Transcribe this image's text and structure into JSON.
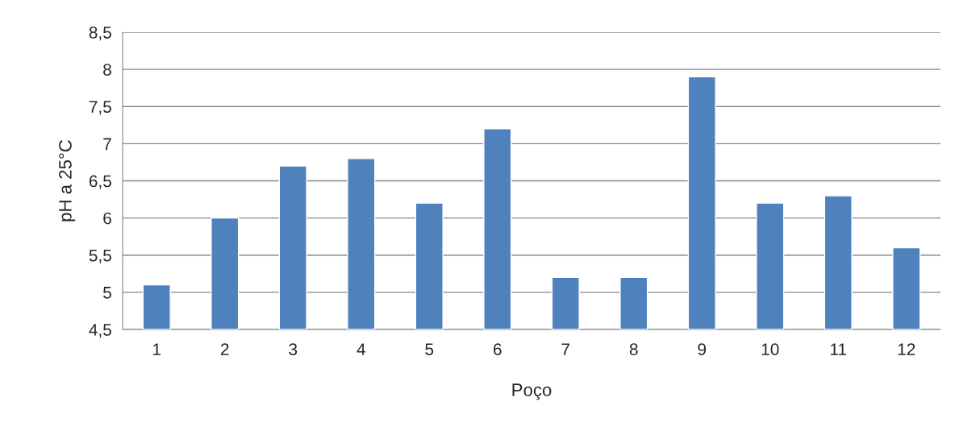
{
  "chart_data": {
    "type": "bar",
    "xlabel": "Poço",
    "ylabel": "pH a 25°C",
    "categories": [
      "1",
      "2",
      "3",
      "4",
      "5",
      "6",
      "7",
      "8",
      "9",
      "10",
      "11",
      "12"
    ],
    "values": [
      5.1,
      6.0,
      6.7,
      6.8,
      6.2,
      7.2,
      5.2,
      5.2,
      7.9,
      6.2,
      6.3,
      5.6
    ],
    "color": "#4f81bd",
    "ylim": [
      4.5,
      8.5
    ],
    "yticks": [
      {
        "value": 4.5,
        "label": "4,5"
      },
      5,
      {
        "value": 5.5,
        "label": "5,5"
      },
      6,
      {
        "value": 6.5,
        "label": "6,5"
      },
      7,
      {
        "value": 7.5,
        "label": "7,5"
      },
      8,
      {
        "value": 8.5,
        "label": "8,5"
      }
    ],
    "grid": "y",
    "legend": false
  }
}
